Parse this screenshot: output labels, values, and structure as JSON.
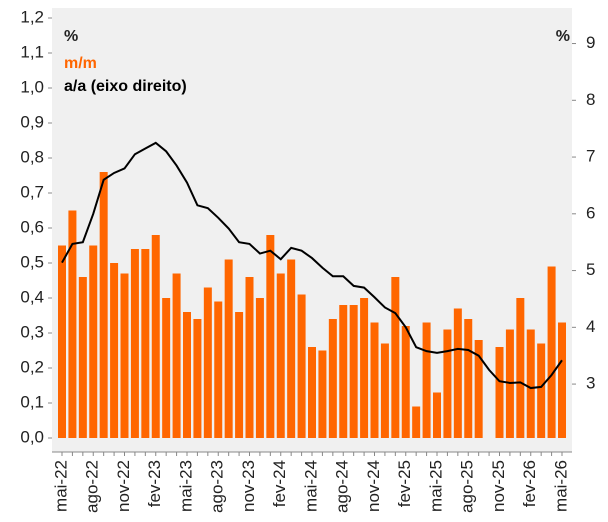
{
  "chart_data": {
    "type": "bar-line",
    "ylabel": "%",
    "y2label": "%",
    "categories": [
      "mai-22",
      null,
      null,
      "ago-22",
      null,
      null,
      "nov-22",
      null,
      null,
      "fev-23",
      null,
      null,
      "mai-23",
      null,
      null,
      "ago-23",
      null,
      null,
      "nov-23",
      null,
      null,
      "fev-24",
      null,
      null,
      "mai-24",
      null,
      null,
      "ago-24",
      null,
      null,
      "nov-24",
      null,
      null,
      "fev-25",
      null,
      null,
      "mai-25",
      null,
      null,
      "ago-25",
      null,
      null,
      "nov-25",
      null,
      null,
      "fev-26",
      null,
      null,
      "mai-26"
    ],
    "series": [
      {
        "name": "m/m",
        "type": "bar",
        "color": "#ff6600",
        "values": [
          0.55,
          0.65,
          0.46,
          0.55,
          0.76,
          0.5,
          0.47,
          0.54,
          0.54,
          0.58,
          0.4,
          0.47,
          0.36,
          0.34,
          0.43,
          0.39,
          0.51,
          0.36,
          0.46,
          0.4,
          0.58,
          0.47,
          0.51,
          0.41,
          0.26,
          0.25,
          0.34,
          0.38,
          0.38,
          0.4,
          0.33,
          0.27,
          0.46,
          0.32,
          0.09,
          0.33,
          0.13,
          0.31,
          0.37,
          0.34,
          0.28,
          null,
          0.26,
          0.31,
          0.4,
          0.31,
          0.27,
          0.49,
          0.33
        ]
      },
      {
        "name": "a/a (eixo direito)",
        "type": "line",
        "axis": "y2",
        "color": "#000000",
        "values": [
          5.14,
          5.47,
          5.5,
          6.0,
          6.6,
          6.72,
          6.8,
          7.05,
          7.15,
          7.25,
          7.1,
          6.85,
          6.55,
          6.15,
          6.1,
          5.93,
          5.74,
          5.5,
          5.47,
          5.3,
          5.35,
          5.2,
          5.4,
          5.35,
          5.22,
          5.05,
          4.9,
          4.9,
          4.73,
          4.7,
          4.53,
          4.35,
          4.25,
          4.0,
          3.65,
          3.58,
          3.55,
          3.58,
          3.62,
          3.6,
          3.5,
          3.25,
          3.05,
          3.02,
          3.03,
          2.93,
          2.95,
          3.16,
          3.42
        ]
      }
    ],
    "ylim": [
      0,
      1.2
    ],
    "yticks": [
      {
        "value": 0,
        "label": "0,0"
      },
      {
        "value": 0.1,
        "label": "0,1"
      },
      {
        "value": 0.2,
        "label": "0,2"
      },
      {
        "value": 0.3,
        "label": "0,3"
      },
      {
        "value": 0.4,
        "label": "0,4"
      },
      {
        "value": 0.5,
        "label": "0,5"
      },
      {
        "value": 0.6,
        "label": "0,6"
      },
      {
        "value": 0.7,
        "label": "0,7"
      },
      {
        "value": 0.8,
        "label": "0,8"
      },
      {
        "value": 0.9,
        "label": "0,9"
      },
      {
        "value": 1.0,
        "label": "1,0"
      },
      {
        "value": 1.1,
        "label": "1,1"
      },
      {
        "value": 1.2,
        "label": "1,2"
      }
    ],
    "y2lim": [
      2.05,
      9.45
    ],
    "y2ticks": [
      3,
      4,
      5,
      6,
      7,
      8,
      9
    ],
    "background": "#f0f0f0"
  }
}
